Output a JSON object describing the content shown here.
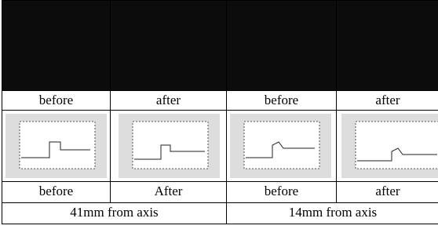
{
  "table": {
    "rows": [
      [
        "before",
        "after",
        "before",
        "after"
      ],
      [
        "before",
        "After",
        "before",
        "after"
      ]
    ],
    "footer": [
      "41mm from axis",
      "14mm from axis"
    ]
  }
}
